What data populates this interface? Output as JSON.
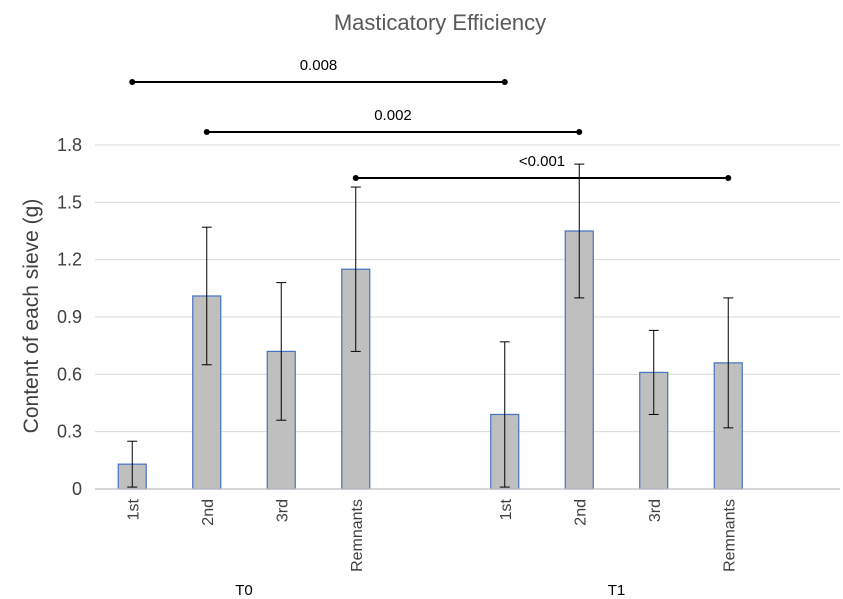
{
  "chart_data": {
    "type": "bar",
    "title": "Masticatory Efficiency",
    "ylabel": "Content of each sieve (g)",
    "xlabel": "",
    "ylim": [
      0,
      1.8
    ],
    "yticks": [
      "0",
      "0.3",
      "0.6",
      "0.9",
      "1.2",
      "1.5",
      "1.8"
    ],
    "grid": true,
    "bar_color": "#bfbfbf",
    "bar_edge_color": "#4472c4",
    "groups": [
      {
        "label": "T0",
        "bars": [
          {
            "category": "1st",
            "value": 0.13,
            "error": 0.12
          },
          {
            "category": "2nd",
            "value": 1.01,
            "error": 0.36
          },
          {
            "category": "3rd",
            "value": 0.72,
            "error": 0.36
          },
          {
            "category": "Remnants",
            "value": 1.15,
            "error": 0.43
          }
        ]
      },
      {
        "label": "T1",
        "bars": [
          {
            "category": "1st",
            "value": 0.39,
            "error": 0.38
          },
          {
            "category": "2nd",
            "value": 1.35,
            "error": 0.35
          },
          {
            "category": "3rd",
            "value": 0.61,
            "error": 0.22
          },
          {
            "category": "Remnants",
            "value": 0.66,
            "error": 0.34
          }
        ]
      }
    ],
    "comparisons": [
      {
        "from": "T0 1st",
        "to": "T1 1st",
        "p": "0.008"
      },
      {
        "from": "T0 2nd",
        "to": "T1 2nd",
        "p": "0.002"
      },
      {
        "from": "T0 Remnants",
        "to": "T1 Remnants",
        "p": "<0.001"
      }
    ]
  }
}
